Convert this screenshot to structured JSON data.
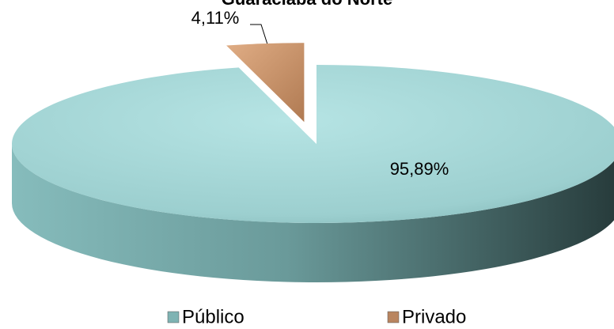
{
  "chart_data": {
    "type": "pie3d",
    "title": "Guaraciaba do Norte",
    "categories": [
      "Público",
      "Privado"
    ],
    "values": [
      95.89,
      4.11
    ],
    "value_labels": [
      "95,89%",
      "4,11%"
    ],
    "colors": [
      "#9fd3d3",
      "#c9936a"
    ]
  }
}
